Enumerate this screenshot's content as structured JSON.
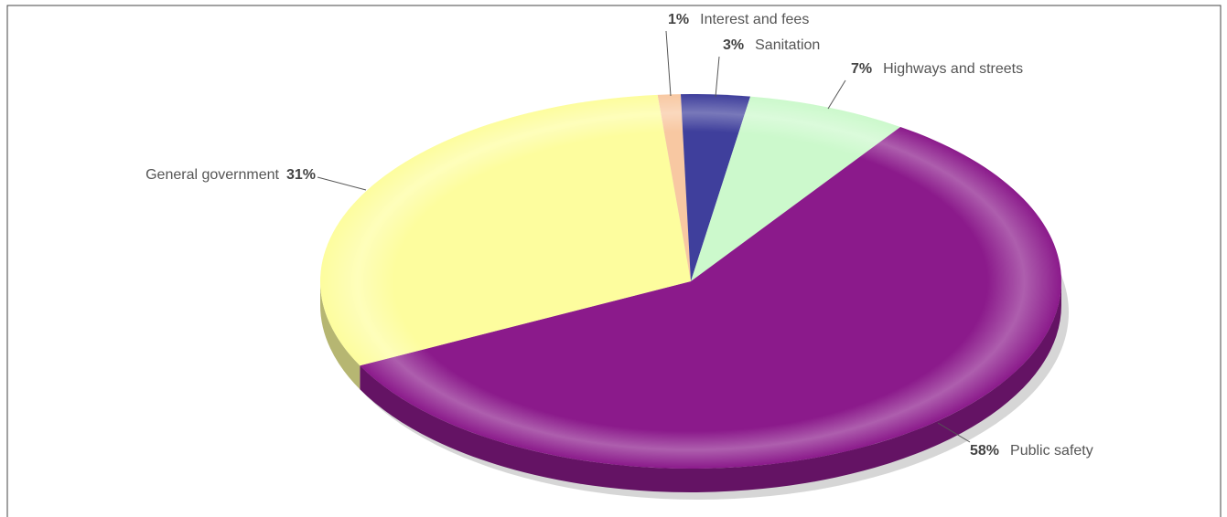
{
  "chart_data": {
    "type": "pie",
    "categories": [
      "Interest and fees",
      "Sanitation",
      "Highways and streets",
      "Public safety",
      "General government"
    ],
    "values": [
      1,
      3,
      7,
      58,
      31
    ],
    "value_labels": [
      "1%",
      "3%",
      "7%",
      "58%",
      "31%"
    ],
    "colors": [
      "#f8c8a2",
      "#3f3f9c",
      "#ccf9cc",
      "#8b1a8b",
      "#fdfd9e"
    ]
  }
}
